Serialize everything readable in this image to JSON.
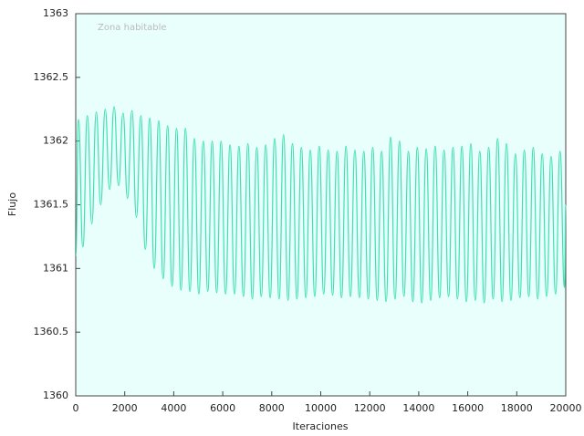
{
  "chart_data": {
    "type": "line",
    "x_label": "Iteraciones",
    "y_label": "Flujo",
    "annotation": "Zona habitable",
    "background": "#e9fffc",
    "grid": false,
    "xlim": [
      0,
      20000
    ],
    "xticks": [
      0,
      2000,
      4000,
      6000,
      8000,
      10000,
      12000,
      14000,
      16000,
      18000,
      20000
    ],
    "ylim": [
      1360,
      1363
    ],
    "yticks": [
      1360,
      1360.5,
      1361,
      1361.5,
      1362,
      1362.5,
      1363
    ],
    "x": [
      0,
      110,
      292,
      474,
      656,
      838,
      1020,
      1202,
      1384,
      1566,
      1748,
      1930,
      2112,
      2294,
      2476,
      2658,
      2840,
      3022,
      3204,
      3386,
      3568,
      3750,
      3932,
      4114,
      4296,
      4478,
      4660,
      4842,
      5024,
      5206,
      5388,
      5570,
      5752,
      5934,
      6116,
      6298,
      6480,
      6662,
      6844,
      7026,
      7208,
      7390,
      7572,
      7754,
      7936,
      8118,
      8300,
      8482,
      8664,
      8846,
      9028,
      9210,
      9392,
      9574,
      9756,
      9938,
      10120,
      10302,
      10484,
      10666,
      10848,
      11030,
      11212,
      11394,
      11576,
      11758,
      11940,
      12122,
      12304,
      12486,
      12668,
      12850,
      13032,
      13214,
      13396,
      13578,
      13760,
      13942,
      14124,
      14306,
      14488,
      14670,
      14852,
      15034,
      15216,
      15398,
      15580,
      15762,
      15944,
      16126,
      16308,
      16490,
      16672,
      16854,
      17036,
      17218,
      17400,
      17582,
      17764,
      17946,
      18128,
      18310,
      18492,
      18674,
      18856,
      19038,
      19220,
      19402,
      19584,
      19766,
      19948,
      20000
    ],
    "series": [
      {
        "color": "#3fe0b0",
        "values": [
          1361.1,
          1362.17,
          1361.17,
          1362.2,
          1361.35,
          1362.23,
          1361.5,
          1362.25,
          1361.62,
          1362.27,
          1361.65,
          1362.22,
          1361.55,
          1362.24,
          1361.4,
          1362.2,
          1361.15,
          1362.18,
          1361.0,
          1362.16,
          1360.92,
          1362.12,
          1360.86,
          1362.1,
          1360.83,
          1362.1,
          1360.82,
          1362.02,
          1360.8,
          1362.0,
          1360.82,
          1362.0,
          1360.81,
          1362.0,
          1360.8,
          1361.97,
          1360.8,
          1361.96,
          1360.78,
          1361.98,
          1360.76,
          1361.95,
          1360.78,
          1361.97,
          1360.77,
          1362.02,
          1360.76,
          1362.05,
          1360.75,
          1361.98,
          1360.76,
          1361.95,
          1360.77,
          1361.93,
          1360.78,
          1361.96,
          1360.8,
          1361.93,
          1360.79,
          1361.92,
          1360.77,
          1361.96,
          1360.78,
          1361.93,
          1360.77,
          1361.92,
          1360.76,
          1361.95,
          1360.75,
          1361.92,
          1360.74,
          1362.03,
          1360.76,
          1362.0,
          1360.78,
          1361.92,
          1360.74,
          1361.95,
          1360.73,
          1361.94,
          1360.75,
          1361.96,
          1360.77,
          1361.93,
          1360.78,
          1361.95,
          1360.76,
          1361.96,
          1360.74,
          1361.98,
          1360.75,
          1361.92,
          1360.73,
          1361.95,
          1360.76,
          1362.02,
          1360.74,
          1361.98,
          1360.75,
          1361.9,
          1360.77,
          1361.93,
          1360.78,
          1361.95,
          1360.76,
          1361.9,
          1360.78,
          1361.88,
          1360.8,
          1361.92,
          1360.85,
          1361.5
        ]
      }
    ]
  }
}
